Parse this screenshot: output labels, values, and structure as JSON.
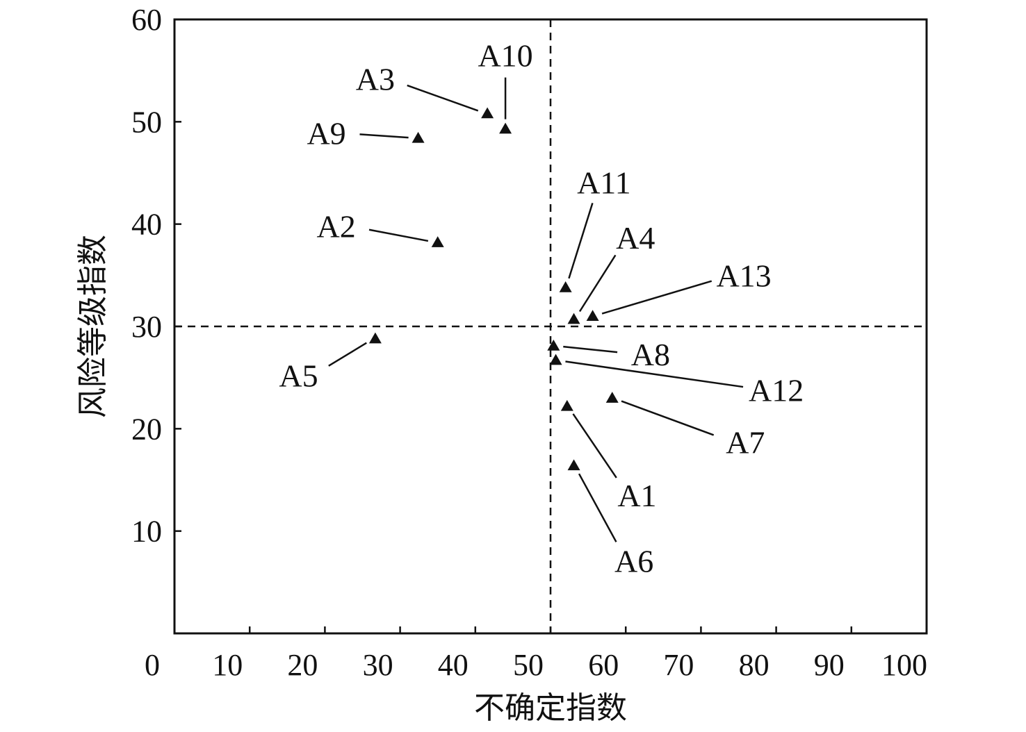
{
  "chart_data": {
    "type": "scatter",
    "xlabel": "不确定指数",
    "ylabel": "风险等级指数",
    "xlim": [
      0,
      100
    ],
    "ylim": [
      0,
      60
    ],
    "x_ticks": [
      0,
      10,
      20,
      30,
      40,
      50,
      60,
      70,
      80,
      90,
      100
    ],
    "y_ticks": [
      10,
      20,
      30,
      40,
      50,
      60
    ],
    "x_tick_labels": [
      "0",
      "10",
      "20",
      "30",
      "40",
      "50",
      "60",
      "70",
      "80",
      "90",
      "100"
    ],
    "y_tick_labels": [
      "10",
      "20",
      "30",
      "40",
      "50",
      "60"
    ],
    "reference_lines": {
      "x": 50,
      "y": 30,
      "style": "dashed"
    },
    "marker": "triangle",
    "grid": false,
    "points": [
      {
        "label": "A1",
        "x": 52.2,
        "y": 22.2,
        "label_x": 61.5,
        "label_y": 13.5
      },
      {
        "label": "A2",
        "x": 35.0,
        "y": 38.2,
        "label_x": 21.5,
        "label_y": 39.8
      },
      {
        "label": "A3",
        "x": 41.6,
        "y": 50.8,
        "label_x": 26.7,
        "label_y": 54.2
      },
      {
        "label": "A4",
        "x": 53.1,
        "y": 30.7,
        "label_x": 61.3,
        "label_y": 38.7
      },
      {
        "label": "A5",
        "x": 26.7,
        "y": 28.8,
        "label_x": 16.5,
        "label_y": 25.2
      },
      {
        "label": "A6",
        "x": 53.1,
        "y": 16.4,
        "label_x": 61.1,
        "label_y": 7.1
      },
      {
        "label": "A7",
        "x": 58.2,
        "y": 23.0,
        "label_x": 75.9,
        "label_y": 18.7
      },
      {
        "label": "A8",
        "x": 50.4,
        "y": 28.1,
        "label_x": 63.3,
        "label_y": 27.3
      },
      {
        "label": "A9",
        "x": 32.4,
        "y": 48.4,
        "label_x": 20.2,
        "label_y": 48.9
      },
      {
        "label": "A10",
        "x": 44.0,
        "y": 49.3,
        "label_x": 44.0,
        "label_y": 56.5
      },
      {
        "label": "A11",
        "x": 52.0,
        "y": 33.8,
        "label_x": 57.1,
        "label_y": 44.1
      },
      {
        "label": "A12",
        "x": 50.7,
        "y": 26.7,
        "label_x": 80.0,
        "label_y": 23.8
      },
      {
        "label": "A13",
        "x": 55.6,
        "y": 31.0,
        "label_x": 75.7,
        "label_y": 35.0
      }
    ]
  }
}
